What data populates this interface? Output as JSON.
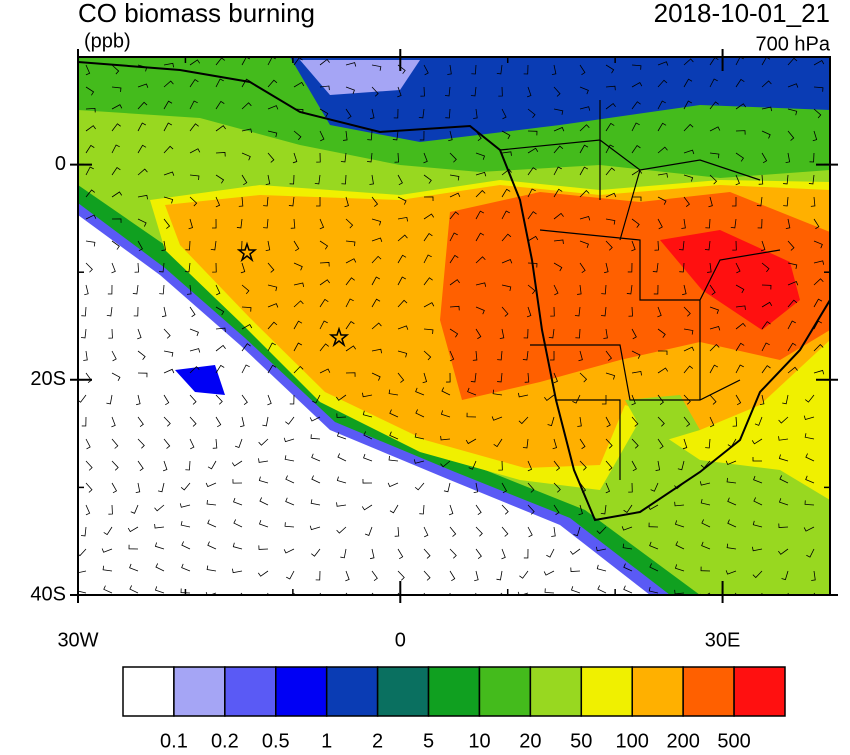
{
  "map": {
    "title": "CO biomass burning",
    "units": "(ppb)",
    "date": "2018-10-01_21",
    "level": "700 hPa",
    "xlim": [
      -30,
      40
    ],
    "ylim": [
      -40,
      10
    ],
    "xticks": [
      {
        "value": -30,
        "label": "30W"
      },
      0,
      {
        "value": 30,
        "label": "30E"
      }
    ],
    "yticks": [
      0,
      {
        "value": -20,
        "label": "20S"
      },
      {
        "value": -40,
        "label": "40S"
      }
    ],
    "colorbar": {
      "levels": [
        0.1,
        0.2,
        0.5,
        1,
        2,
        5,
        10,
        20,
        50,
        100,
        200,
        500
      ],
      "colors": [
        "#ffffff",
        "#a5a5f5",
        "#5a5af5",
        "#0000f5",
        "#0a3cb4",
        "#0a7060",
        "#10a020",
        "#44bb1c",
        "#98d820",
        "#f0f000",
        "#ffb000",
        "#ff6000",
        "#ff1010"
      ]
    }
  }
}
